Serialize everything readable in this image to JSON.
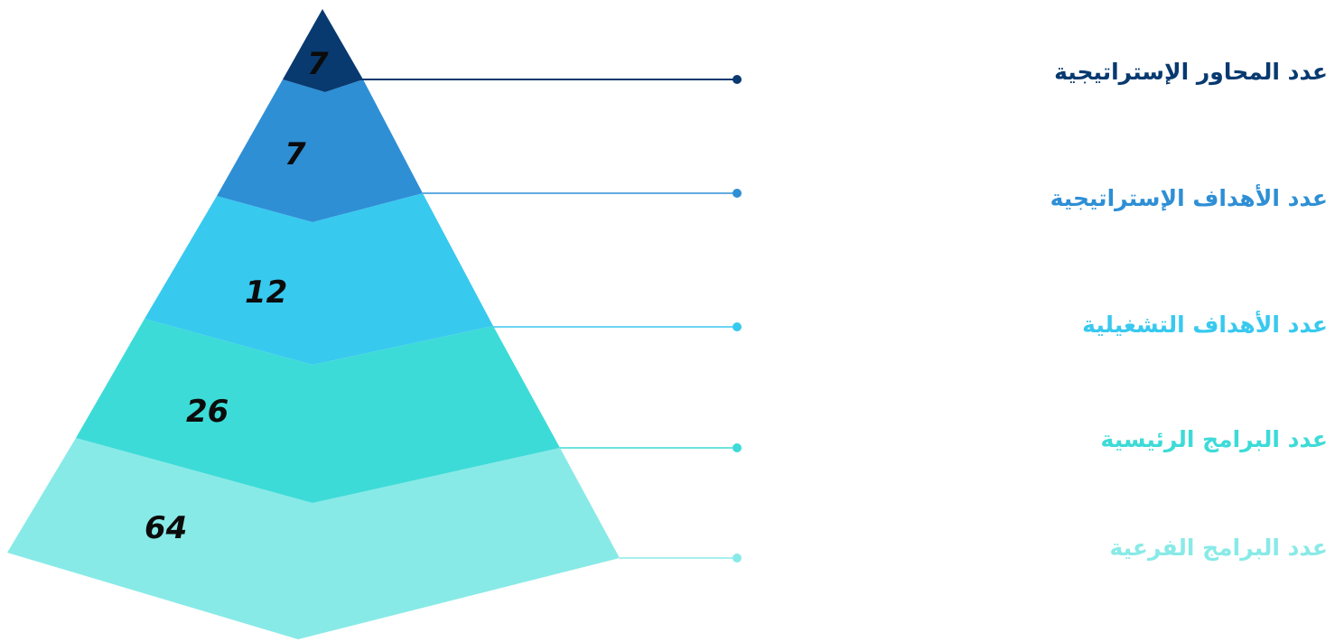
{
  "diagram": {
    "type": "pyramid",
    "tiers": [
      {
        "label": "عدد المحاور  الإستراتيجية",
        "value": "7",
        "color": "#083a70"
      },
      {
        "label": "عدد الأهداف الإستراتيجية",
        "value": "7",
        "color": "#2e8fd5"
      },
      {
        "label": "عدد الأهداف التشغيلية",
        "value": "12",
        "color": "#38c9ef"
      },
      {
        "label": "عدد البرامج الرئيسية",
        "value": "26",
        "color": "#3ddbd7"
      },
      {
        "label": "عدد البرامج الفرعية",
        "value": "64",
        "color": "#88eae7"
      }
    ]
  }
}
